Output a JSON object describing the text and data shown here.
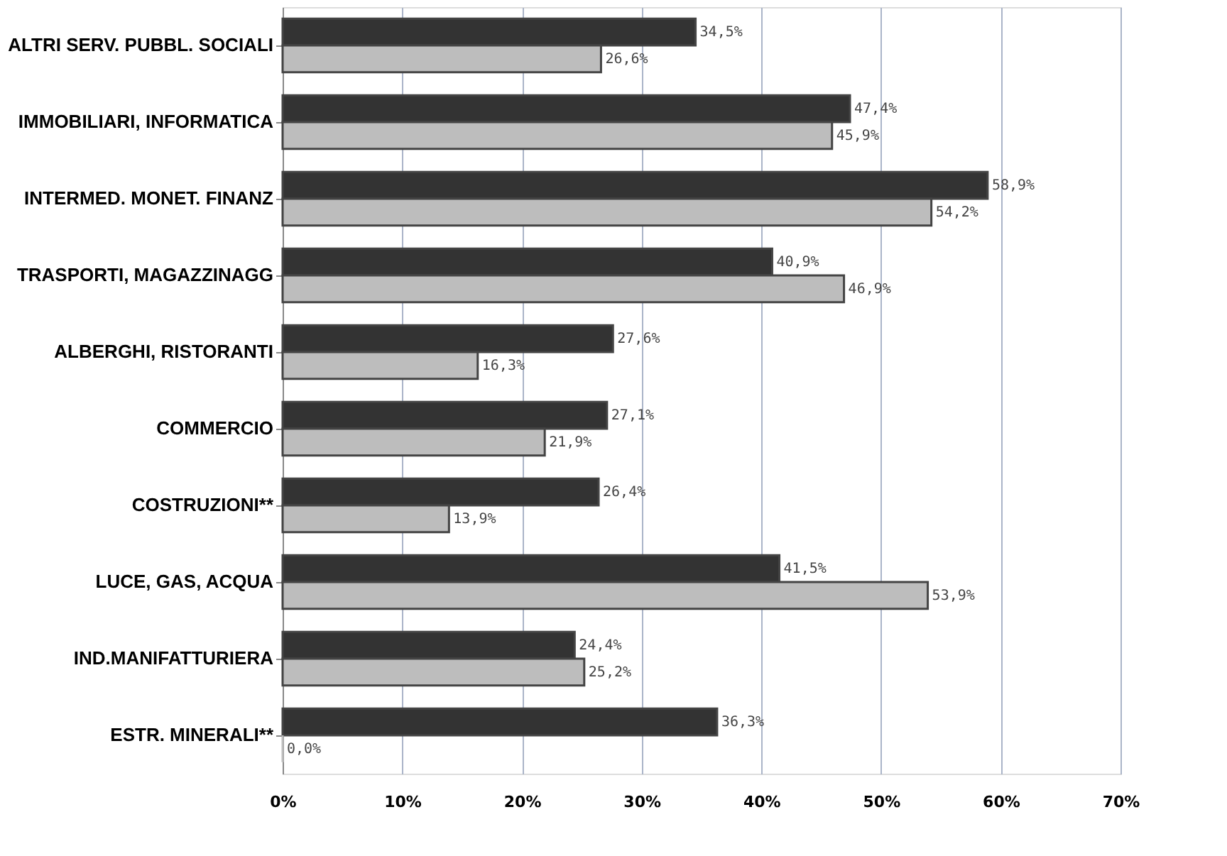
{
  "chart_data": {
    "type": "bar",
    "orientation": "horizontal",
    "categories": [
      "ALTRI SERV. PUBBL. SOCIALI",
      "IMMOBILIARI, INFORMATICA",
      "INTERMED. MONET. FINANZ",
      "TRASPORTI, MAGAZZINAGG",
      "ALBERGHI, RISTORANTI",
      "COMMERCIO",
      "COSTRUZIONI**",
      "LUCE, GAS, ACQUA",
      "IND.MANIFATTURIERA",
      "ESTR. MINERALI**"
    ],
    "series": [
      {
        "color": "#333333",
        "values": [
          34.5,
          47.4,
          58.9,
          40.9,
          27.6,
          27.1,
          26.4,
          41.5,
          24.4,
          36.3
        ],
        "value_labels": [
          "34,5%",
          "47,4%",
          "58,9%",
          "40,9%",
          "27,6%",
          "27,1%",
          "26,4%",
          "41,5%",
          "24,4%",
          "36,3%"
        ]
      },
      {
        "color": "#bdbdbd",
        "values": [
          26.6,
          45.9,
          54.2,
          46.9,
          16.3,
          21.9,
          13.9,
          53.9,
          25.2,
          0.0
        ],
        "value_labels": [
          "26,6%",
          "45,9%",
          "54,2%",
          "46,9%",
          "16,3%",
          "21,9%",
          "13,9%",
          "53,9%",
          "25,2%",
          "0,0%"
        ]
      }
    ],
    "xlim": [
      0,
      70
    ],
    "xticks": [
      {
        "value": 0,
        "label": "0%"
      },
      {
        "value": 10,
        "label": "10%"
      },
      {
        "value": 20,
        "label": "20%"
      },
      {
        "value": 30,
        "label": "30%"
      },
      {
        "value": 40,
        "label": "40%"
      },
      {
        "value": 50,
        "label": "50%"
      },
      {
        "value": 60,
        "label": "60%"
      },
      {
        "value": 70,
        "label": "70%"
      }
    ],
    "grid": "x",
    "legend": false
  }
}
